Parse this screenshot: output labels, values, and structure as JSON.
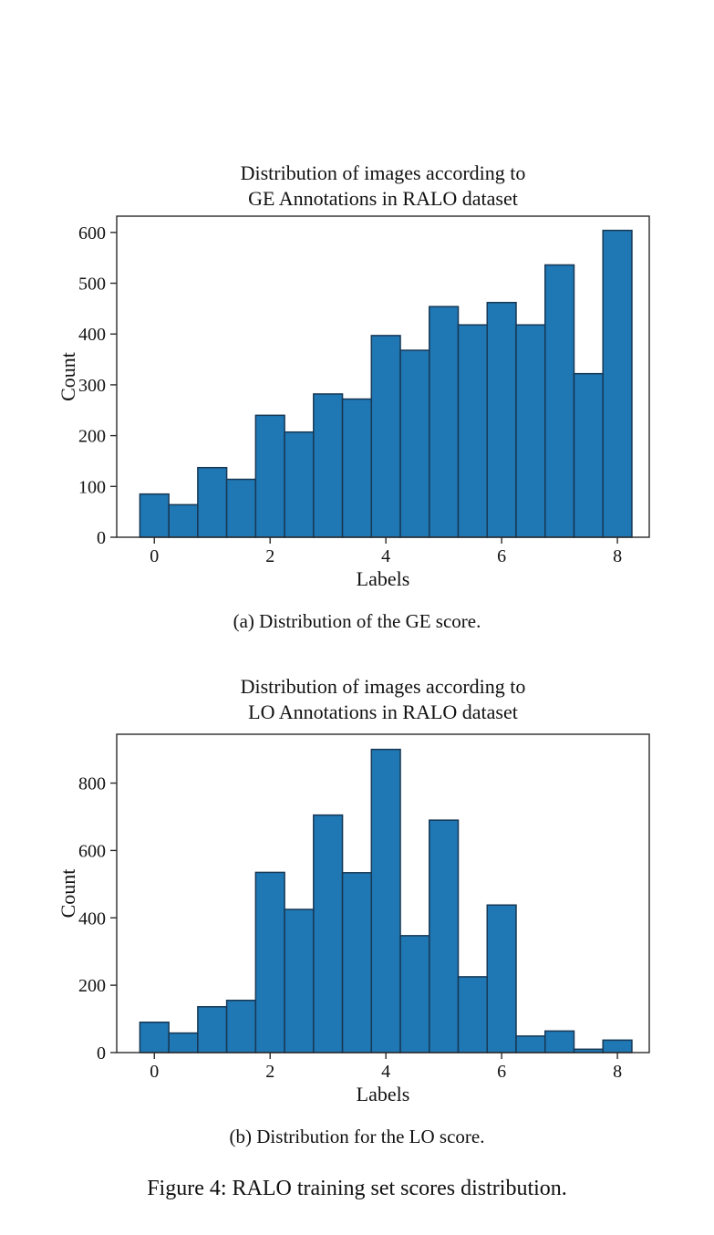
{
  "figure": {
    "subcaption_a": "(a) Distribution of the GE score.",
    "subcaption_b": "(b) Distribution for the LO score.",
    "caption": "Figure 4: RALO training set scores distribution."
  },
  "chart_data": [
    {
      "id": "ge",
      "type": "bar",
      "title": "Distribution of images according to\nGE Annotations in RALO dataset",
      "xlabel": "Labels",
      "ylabel": "Count",
      "bin_centers": [
        0,
        0.5,
        1,
        1.5,
        2,
        2.5,
        3,
        3.5,
        4,
        4.5,
        5,
        5.5,
        6,
        6.5,
        7,
        7.5,
        8
      ],
      "bar_width": 0.5,
      "values": [
        85,
        64,
        137,
        114,
        240,
        207,
        282,
        272,
        397,
        368,
        454,
        418,
        462,
        418,
        536,
        322,
        604
      ],
      "xticks": [
        0,
        2,
        4,
        6,
        8
      ],
      "yticks": [
        0,
        100,
        200,
        300,
        400,
        500,
        600
      ],
      "xlim": [
        -0.65,
        8.55
      ],
      "ylim": [
        0,
        632
      ],
      "grid": false,
      "legend": "none",
      "bar_color": "#1f77b4",
      "bar_edge_color": "#173855",
      "axis_color": "#2b2b2b"
    },
    {
      "id": "lo",
      "type": "bar",
      "title": "Distribution of images according to\nLO Annotations in RALO dataset",
      "xlabel": "Labels",
      "ylabel": "Count",
      "bin_centers": [
        0,
        0.5,
        1,
        1.5,
        2,
        2.5,
        3,
        3.5,
        4,
        4.5,
        5,
        5.5,
        6,
        6.5,
        7,
        7.5,
        8
      ],
      "bar_width": 0.5,
      "values": [
        90,
        58,
        136,
        155,
        535,
        425,
        705,
        534,
        900,
        347,
        690,
        225,
        438,
        49,
        64,
        10,
        37
      ],
      "xticks": [
        0,
        2,
        4,
        6,
        8
      ],
      "yticks": [
        0,
        200,
        400,
        600,
        800
      ],
      "xlim": [
        -0.65,
        8.55
      ],
      "ylim": [
        0,
        945
      ],
      "grid": false,
      "legend": "none",
      "bar_color": "#1f77b4",
      "bar_edge_color": "#173855",
      "axis_color": "#2b2b2b"
    }
  ]
}
